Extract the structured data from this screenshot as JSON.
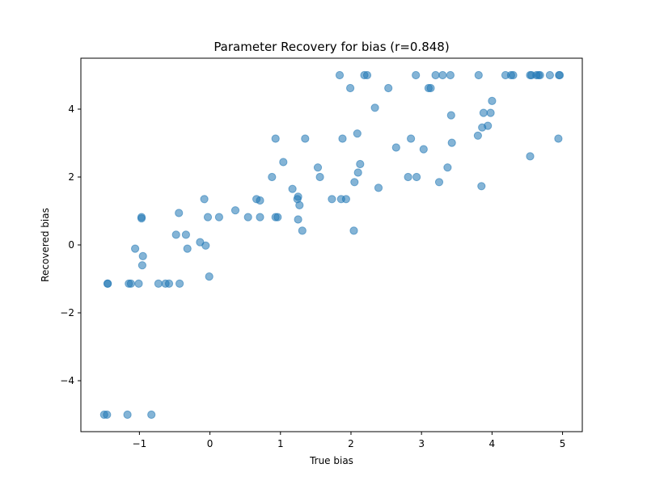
{
  "chart_data": {
    "type": "scatter",
    "title": "Parameter Recovery for bias (r=0.848)",
    "xlabel": "True bias",
    "ylabel": "Recovered bias",
    "xlim": [
      -1.83,
      5.28
    ],
    "ylim": [
      -5.5,
      5.5
    ],
    "xticks": [
      -1,
      0,
      1,
      2,
      3,
      4,
      5
    ],
    "yticks": [
      -4,
      -2,
      0,
      2,
      4
    ],
    "grid": false,
    "legend": "none",
    "point_color": "#1f77b4",
    "point_alpha": 0.55,
    "series": [
      {
        "points": [
          [
            -1.5,
            -5.0
          ],
          [
            -1.46,
            -5.0
          ],
          [
            -1.45,
            -1.14
          ],
          [
            -1.45,
            -1.14
          ],
          [
            -1.17,
            -5.0
          ],
          [
            -1.15,
            -1.14
          ],
          [
            -1.12,
            -1.14
          ],
          [
            -1.06,
            -0.11
          ],
          [
            -1.01,
            -1.14
          ],
          [
            -0.97,
            0.82
          ],
          [
            -0.97,
            0.78
          ],
          [
            -0.95,
            -0.33
          ],
          [
            -0.96,
            -0.6
          ],
          [
            -0.83,
            -5.0
          ],
          [
            -0.73,
            -1.14
          ],
          [
            -0.63,
            -1.14
          ],
          [
            -0.58,
            -1.14
          ],
          [
            -0.48,
            0.3
          ],
          [
            -0.44,
            0.94
          ],
          [
            -0.43,
            -1.14
          ],
          [
            -0.34,
            0.3
          ],
          [
            -0.32,
            -0.11
          ],
          [
            -0.14,
            0.08
          ],
          [
            -0.08,
            1.35
          ],
          [
            -0.06,
            -0.02
          ],
          [
            -0.03,
            0.82
          ],
          [
            -0.01,
            -0.93
          ],
          [
            0.13,
            0.82
          ],
          [
            0.36,
            1.02
          ],
          [
            0.54,
            0.82
          ],
          [
            0.66,
            1.35
          ],
          [
            0.71,
            1.31
          ],
          [
            0.71,
            0.82
          ],
          [
            0.88,
            2.0
          ],
          [
            0.93,
            3.13
          ],
          [
            0.93,
            0.82
          ],
          [
            0.96,
            0.82
          ],
          [
            1.04,
            2.44
          ],
          [
            1.17,
            1.65
          ],
          [
            1.24,
            1.35
          ],
          [
            1.25,
            1.42
          ],
          [
            1.25,
            0.75
          ],
          [
            1.27,
            1.17
          ],
          [
            1.31,
            0.42
          ],
          [
            1.35,
            3.13
          ],
          [
            1.53,
            2.28
          ],
          [
            1.56,
            2.0
          ],
          [
            1.73,
            1.35
          ],
          [
            1.84,
            5.0
          ],
          [
            1.86,
            1.35
          ],
          [
            1.88,
            3.13
          ],
          [
            1.93,
            1.35
          ],
          [
            1.99,
            4.62
          ],
          [
            2.04,
            0.42
          ],
          [
            2.05,
            1.85
          ],
          [
            2.09,
            3.28
          ],
          [
            2.1,
            2.13
          ],
          [
            2.13,
            2.38
          ],
          [
            2.19,
            5.0
          ],
          [
            2.23,
            5.0
          ],
          [
            2.34,
            4.04
          ],
          [
            2.39,
            1.68
          ],
          [
            2.53,
            4.62
          ],
          [
            2.64,
            2.87
          ],
          [
            2.81,
            2.0
          ],
          [
            2.85,
            3.13
          ],
          [
            2.92,
            5.0
          ],
          [
            2.93,
            2.0
          ],
          [
            3.03,
            2.82
          ],
          [
            3.1,
            4.62
          ],
          [
            3.13,
            4.62
          ],
          [
            3.2,
            5.0
          ],
          [
            3.25,
            1.85
          ],
          [
            3.3,
            5.0
          ],
          [
            3.37,
            2.28
          ],
          [
            3.41,
            5.0
          ],
          [
            3.42,
            3.82
          ],
          [
            3.43,
            3.01
          ],
          [
            3.8,
            3.22
          ],
          [
            3.81,
            5.0
          ],
          [
            3.85,
            1.73
          ],
          [
            3.86,
            3.46
          ],
          [
            3.88,
            3.89
          ],
          [
            3.94,
            3.51
          ],
          [
            3.98,
            3.89
          ],
          [
            4.0,
            4.24
          ],
          [
            4.19,
            5.0
          ],
          [
            4.27,
            5.0
          ],
          [
            4.3,
            5.0
          ],
          [
            4.54,
            2.61
          ],
          [
            4.54,
            5.0
          ],
          [
            4.56,
            5.0
          ],
          [
            4.63,
            5.0
          ],
          [
            4.66,
            5.0
          ],
          [
            4.68,
            5.0
          ],
          [
            4.82,
            5.0
          ],
          [
            4.94,
            3.13
          ],
          [
            4.95,
            5.0
          ],
          [
            4.96,
            5.0
          ]
        ]
      }
    ]
  }
}
